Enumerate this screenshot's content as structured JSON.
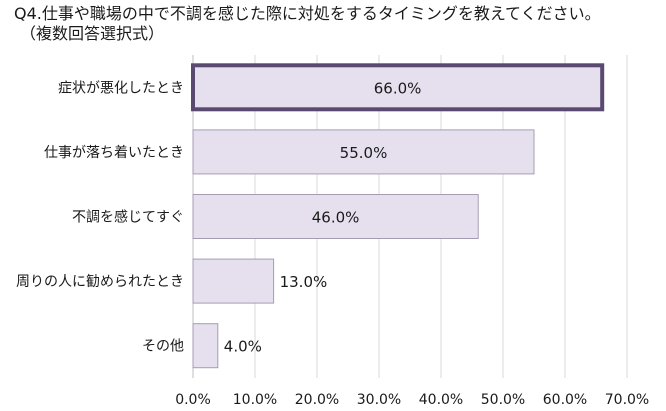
{
  "title_lines": [
    "Q4.仕事や職場の中で不調を感じた際に対処をするタイミングを教えてください。",
    "（複数回答選択式）"
  ],
  "colors": {
    "bar_fill": "#e6e0ee",
    "bar_stroke": "#a59cb4",
    "highlight_stroke": "#5a4a70",
    "grid": "#d9d9d9",
    "axis": "#bfbfbf"
  },
  "chart_data": {
    "type": "bar",
    "orientation": "horizontal",
    "categories": [
      "症状が悪化したとき",
      "仕事が落ち着いたとき",
      "不調を感じてすぐ",
      "周りの人に勧められたとき",
      "その他"
    ],
    "values": [
      66.0,
      55.0,
      46.0,
      13.0,
      4.0
    ],
    "data_labels": [
      "66.0%",
      "55.0%",
      "46.0%",
      "13.0%",
      "4.0%"
    ],
    "highlighted_index": 0,
    "xlim": [
      0,
      70
    ],
    "xticks": [
      0,
      10,
      20,
      30,
      40,
      50,
      60,
      70
    ],
    "xtick_labels": [
      "0.0%",
      "10.0%",
      "20.0%",
      "30.0%",
      "40.0%",
      "50.0%",
      "60.0%",
      "70.0%"
    ],
    "grid": true
  }
}
